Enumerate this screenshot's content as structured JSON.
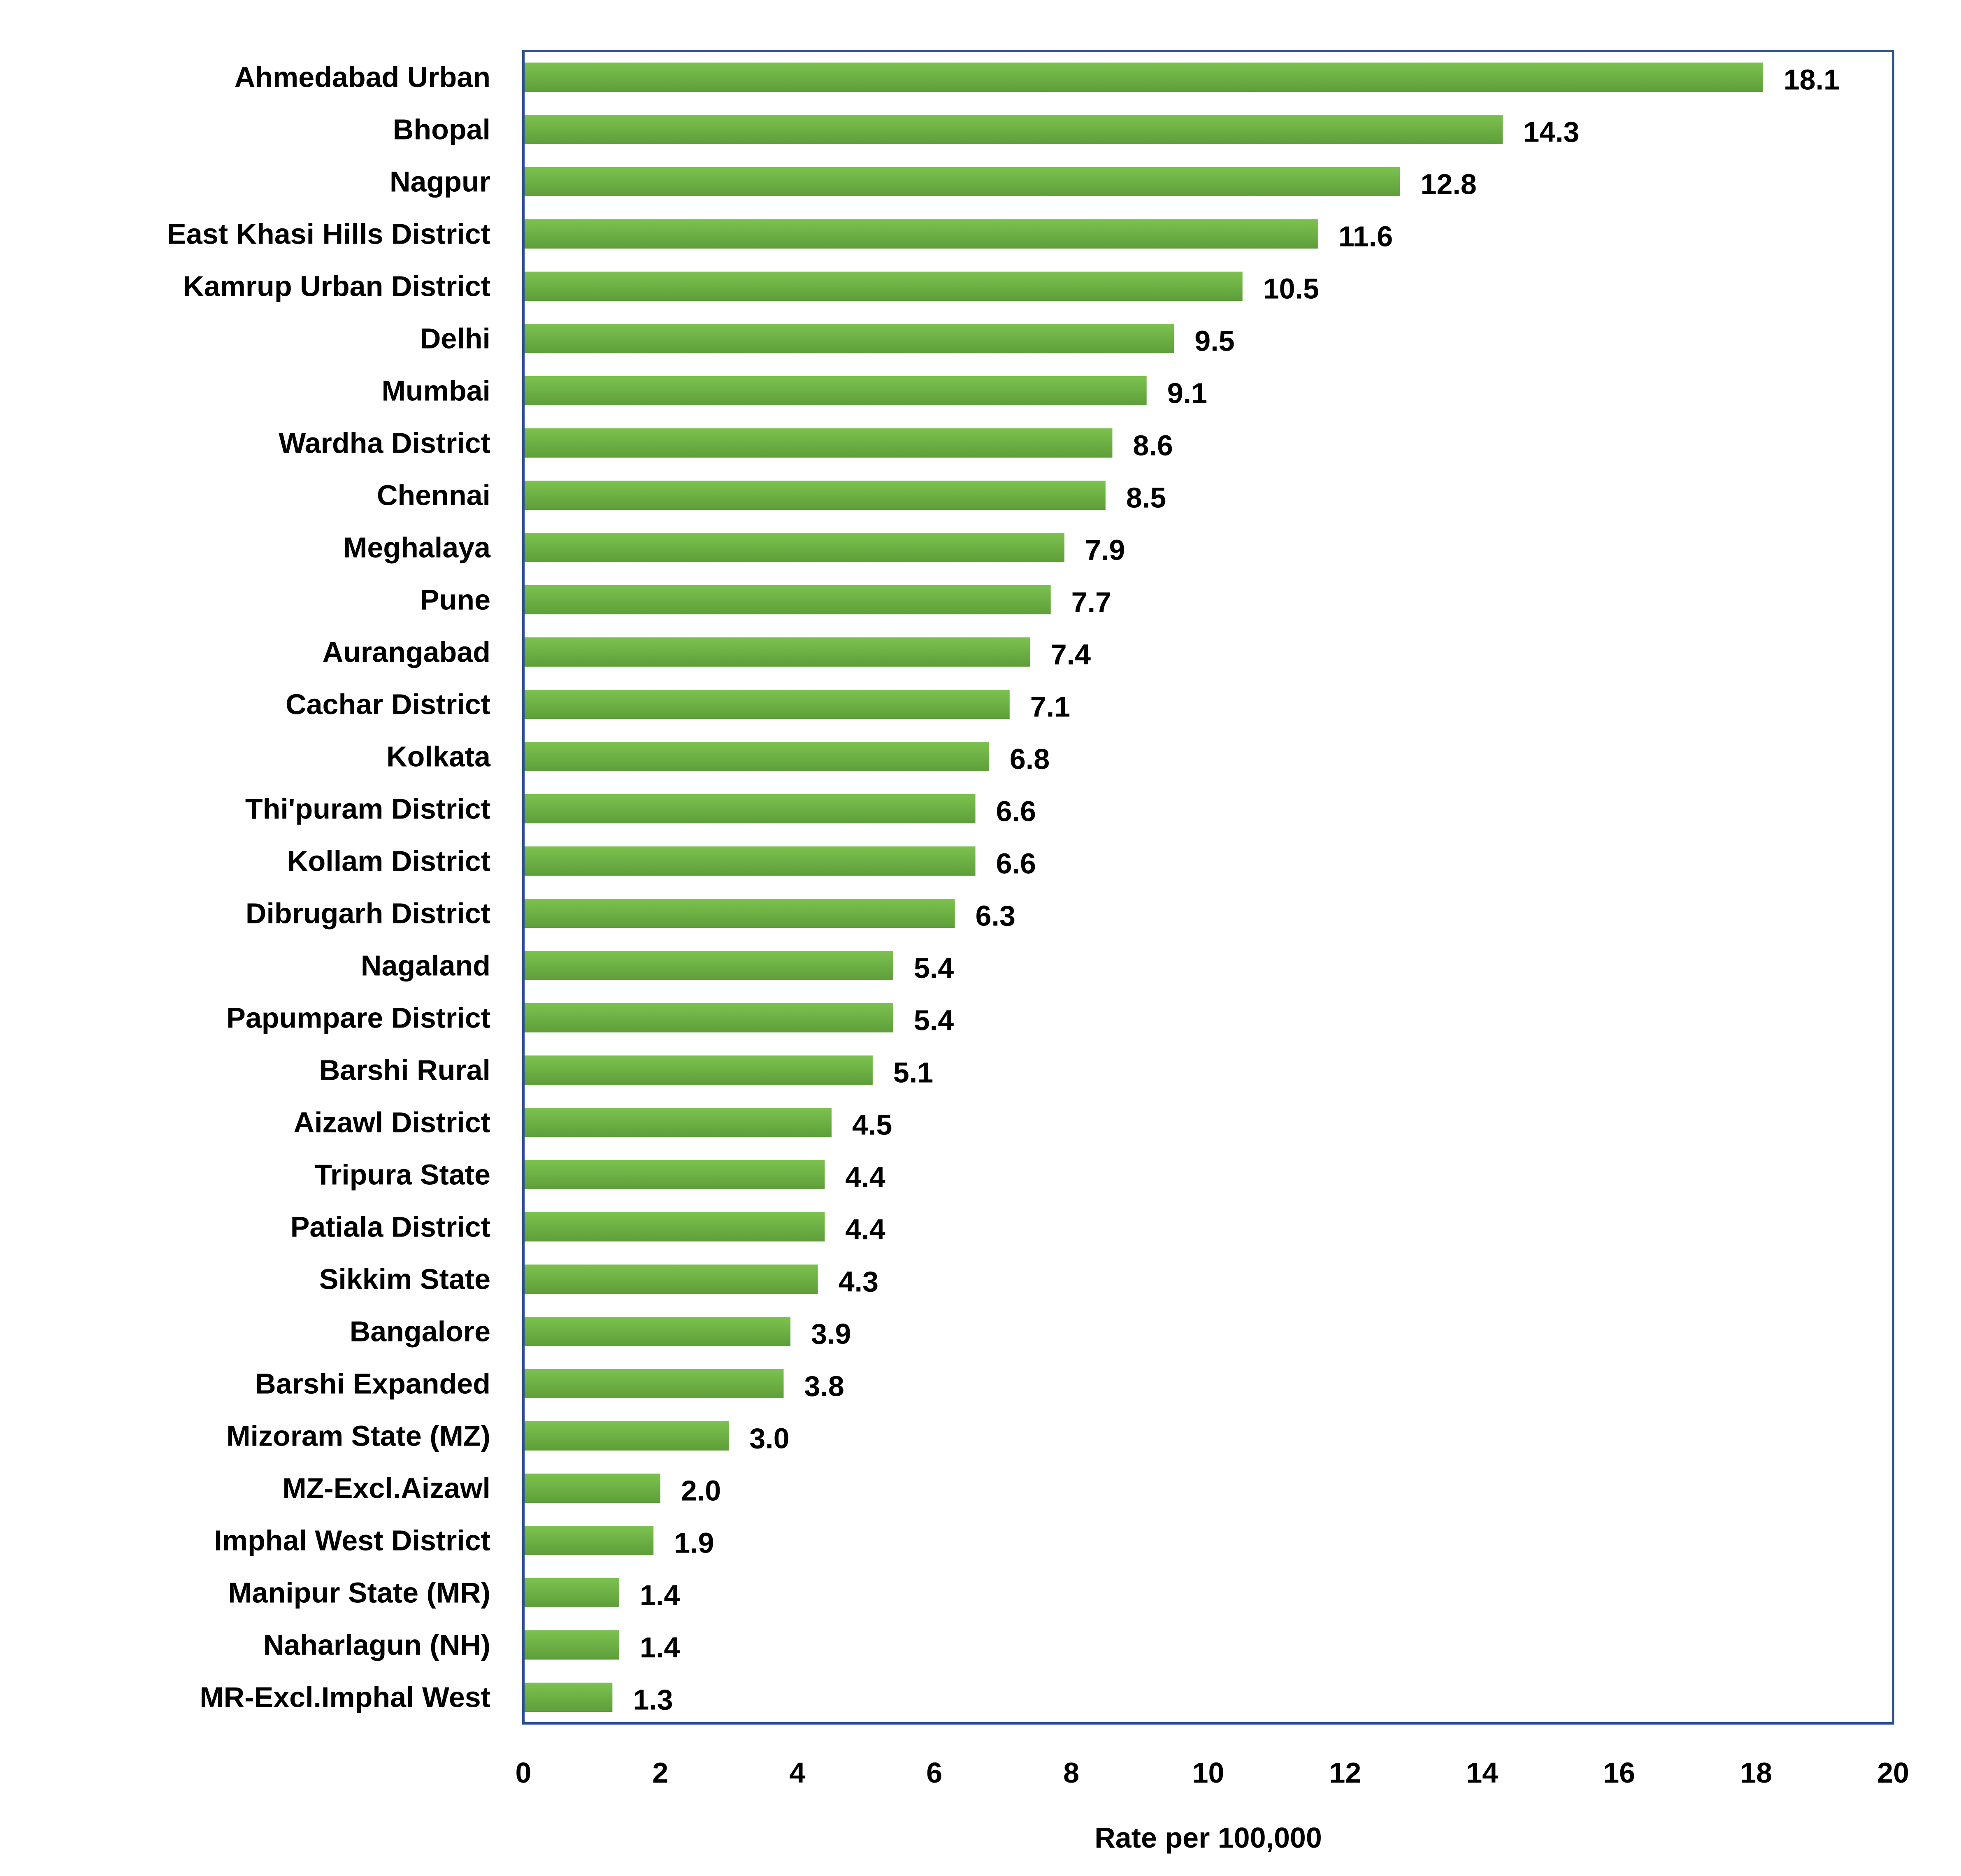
{
  "chart_data": {
    "type": "bar",
    "orientation": "horizontal",
    "title": "",
    "xlabel": "Rate per 100,000",
    "ylabel": "",
    "xlim": [
      0,
      20
    ],
    "xticks": [
      0,
      2,
      4,
      6,
      8,
      10,
      12,
      14,
      16,
      18,
      20
    ],
    "grid": false,
    "legend": "none",
    "bar_color": "#6ab04c",
    "bar_gradient_light": "#7cc24f",
    "bar_gradient_dark": "#5e9e3a",
    "frame_color": "#2f4f8f",
    "categories": [
      "Ahmedabad Urban",
      "Bhopal",
      "Nagpur",
      "East Khasi Hills District",
      "Kamrup Urban District",
      "Delhi",
      "Mumbai",
      "Wardha District",
      "Chennai",
      "Meghalaya",
      "Pune",
      "Aurangabad",
      "Cachar District",
      "Kolkata",
      "Thi'puram District",
      "Kollam District",
      "Dibrugarh District",
      "Nagaland",
      "Papumpare District",
      "Barshi Rural",
      "Aizawl District",
      "Tripura State",
      "Patiala District",
      "Sikkim State",
      "Bangalore",
      "Barshi Expanded",
      "Mizoram State (MZ)",
      "MZ-Excl.Aizawl",
      "Imphal West District",
      "Manipur State (MR)",
      "Naharlagun (NH)",
      "MR-Excl.Imphal West"
    ],
    "values": [
      18.1,
      14.3,
      12.8,
      11.6,
      10.5,
      9.5,
      9.1,
      8.6,
      8.5,
      7.9,
      7.7,
      7.4,
      7.1,
      6.8,
      6.6,
      6.6,
      6.3,
      5.4,
      5.4,
      5.1,
      4.5,
      4.4,
      4.4,
      4.3,
      3.9,
      3.8,
      3.0,
      2.0,
      1.9,
      1.4,
      1.4,
      1.3
    ],
    "value_labels": [
      "18.1",
      "14.3",
      "12.8",
      "11.6",
      "10.5",
      "9.5",
      "9.1",
      "8.6",
      "8.5",
      "7.9",
      "7.7",
      "7.4",
      "7.1",
      "6.8",
      "6.6",
      "6.6",
      "6.3",
      "5.4",
      "5.4",
      "5.1",
      "4.5",
      "4.4",
      "4.4",
      "4.3",
      "3.9",
      "3.8",
      "3.0",
      "2.0",
      "1.9",
      "1.4",
      "1.4",
      "1.3"
    ]
  }
}
